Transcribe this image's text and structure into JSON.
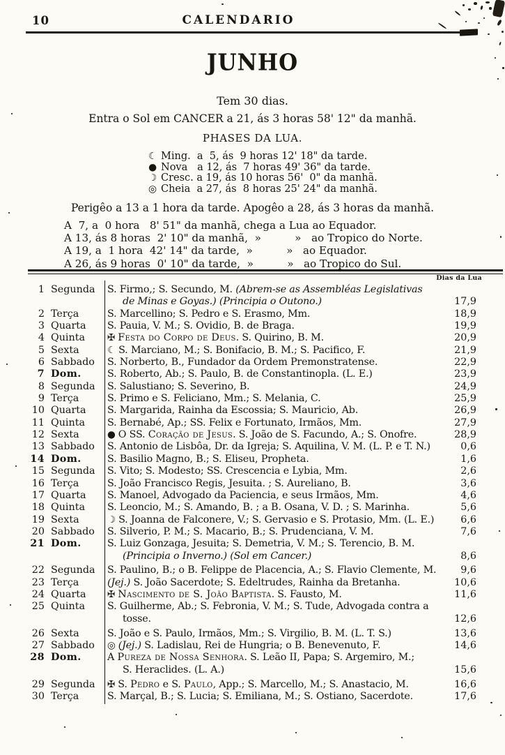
{
  "colors": {
    "ink": "#19150f",
    "paper": "#fcfbf6"
  },
  "header": {
    "page_number": "10",
    "title": "CALENDARIO"
  },
  "month": {
    "title": "JUNHO",
    "days": "Tem 30 dias.",
    "sun": "Entra o Sol em CANCER a 21, ás 3 horas 58' 12\" da manhã."
  },
  "phases": {
    "title": "PHASES DA LUA.",
    "items": [
      {
        "sym": "☾",
        "name": "Ming.",
        "text": "Ming.  a  5, ás  9 horas 12' 18\" da tarde."
      },
      {
        "sym": "●",
        "name": "Nova",
        "text": "Nova   a 12, ás  7 horas 49' 36\" da tarde."
      },
      {
        "sym": "☽",
        "name": "Cresc.",
        "text": "Cresc. a 19, ás 10 horas 56'  0\" da manhã."
      },
      {
        "sym": "◎",
        "name": "Cheia",
        "text": "Cheia  a 27, ás  8 horas 25' 24\" da manhã."
      }
    ]
  },
  "perigee": "Perigêo a 13 a 1 hora da tarde. Apogêo a 28, ás 3 horas da manhã.",
  "equator": [
    "A  7, a  0 hora   8' 51\" da manhã, chega a Lua ao Equador.",
    "A 13, ás 8 horas  2' 10\" da manhã,  »          »   ao Tropico do Norte.",
    "A 19, a  1 hora  42' 14\" da tarde,  »          »   ao Equador.",
    "A 26, ás 9 horas  0' 10\" da tarde,  »          »   ao Tropico do Sul."
  ],
  "table": {
    "moon_col_label": "Dias da Lua",
    "rows": [
      {
        "n": "1",
        "wd": "Segunda",
        "b": 0,
        "g": 0,
        "age": "17,9",
        "lines": [
          [
            [
              "p",
              "S. Firmo,; S. Secundo, M. "
            ],
            [
              "i",
              "(Abrem-se as Assembléas Legislativas"
            ]
          ],
          [
            [
              "i",
              "de Minas e Goyas.) (Principia o Outono.)"
            ]
          ]
        ]
      },
      {
        "n": "2",
        "wd": "Terça",
        "b": 0,
        "g": 0,
        "age": "18,9",
        "lines": [
          [
            [
              "p",
              "S. Marcellino; S. Pedro e S. Erasmo, Mm."
            ]
          ]
        ]
      },
      {
        "n": "3",
        "wd": "Quarta",
        "b": 0,
        "g": 0,
        "age": "19,9",
        "lines": [
          [
            [
              "p",
              "S. Pauia, V. M.; S. Ovidio, B. de Braga."
            ]
          ]
        ]
      },
      {
        "n": "4",
        "wd": "Quinta",
        "b": 0,
        "g": 0,
        "age": "20,9",
        "lines": [
          [
            [
              "sym",
              "✠ "
            ],
            [
              "sc",
              "Festa do Corpo de Deus"
            ],
            [
              "p",
              ". S. Quirino, B. M."
            ]
          ]
        ]
      },
      {
        "n": "5",
        "wd": "Sexta",
        "b": 0,
        "g": 0,
        "age": "21,9",
        "lines": [
          [
            [
              "sym",
              "☾ "
            ],
            [
              "p",
              "S. Marciano, M.; S. Bonifacio, B. M.; S. Pacifico, F."
            ]
          ]
        ]
      },
      {
        "n": "6",
        "wd": "Sabbado",
        "b": 0,
        "g": 0,
        "age": "22,9",
        "lines": [
          [
            [
              "p",
              "S. Norberto, B., Fundador da Ordem Premonstratense."
            ]
          ]
        ]
      },
      {
        "n": "7",
        "wd": "Dom.",
        "b": 1,
        "g": 0,
        "age": "23,9",
        "lines": [
          [
            [
              "p",
              "S. Roberto, Ab.; S. Paulo, B. de Constantinopla. (L. E.)"
            ]
          ]
        ]
      },
      {
        "n": "8",
        "wd": "Segunda",
        "b": 0,
        "g": 0,
        "age": "24,9",
        "lines": [
          [
            [
              "p",
              "S. Salustiano; S. Severino, B."
            ]
          ]
        ]
      },
      {
        "n": "9",
        "wd": "Terça",
        "b": 0,
        "g": 0,
        "age": "25,9",
        "lines": [
          [
            [
              "p",
              "S. Primo e S. Feliciano, Mm.; S. Melania, C."
            ]
          ]
        ]
      },
      {
        "n": "10",
        "wd": "Quarta",
        "b": 0,
        "g": 0,
        "age": "26,9",
        "lines": [
          [
            [
              "p",
              "S. Margarida, Rainha da Escossia; S. Mauricio, Ab."
            ]
          ]
        ]
      },
      {
        "n": "11",
        "wd": "Quinta",
        "b": 0,
        "g": 0,
        "age": "27,9",
        "lines": [
          [
            [
              "p",
              "S. Bernabé, Ap.; SS. Felix e Fortunato, Irmãos, Mm."
            ]
          ]
        ]
      },
      {
        "n": "12",
        "wd": "Sexta",
        "b": 0,
        "g": 0,
        "age": "28,9",
        "lines": [
          [
            [
              "sym",
              "● "
            ],
            [
              "p",
              "O SS. "
            ],
            [
              "sc",
              "Coração de Jesus"
            ],
            [
              "p",
              ". S. João de S. Facundo, A.; S. Onofre."
            ]
          ]
        ]
      },
      {
        "n": "13",
        "wd": "Sabbado",
        "b": 0,
        "g": 0,
        "age": "0,6",
        "lines": [
          [
            [
              "p",
              "S. Antonio de Lisbôa, Dr. da Igreja; S. Aquilina, V. M. (L. P. e T. N.)"
            ]
          ]
        ]
      },
      {
        "n": "14",
        "wd": "Dom.",
        "b": 1,
        "g": 0,
        "age": "1,6",
        "lines": [
          [
            [
              "p",
              "S. Basilio Magno, B.; S. Eliseu, Propheta."
            ]
          ]
        ]
      },
      {
        "n": "15",
        "wd": "Segunda",
        "b": 0,
        "g": 0,
        "age": "2,6",
        "lines": [
          [
            [
              "p",
              "S. Vito; S. Modesto; SS. Crescencia e Lybia, Mm."
            ]
          ]
        ]
      },
      {
        "n": "16",
        "wd": "Terça",
        "b": 0,
        "g": 0,
        "age": "3,6",
        "lines": [
          [
            [
              "p",
              "S. João Francisco Regis, Jesuita. ; S. Aureliano, B."
            ]
          ]
        ]
      },
      {
        "n": "17",
        "wd": "Quarta",
        "b": 0,
        "g": 0,
        "age": "4,6",
        "lines": [
          [
            [
              "p",
              "S. Manoel, Advogado da Paciencia, e seus Irmãos, Mm."
            ]
          ]
        ]
      },
      {
        "n": "18",
        "wd": "Quinta",
        "b": 0,
        "g": 0,
        "age": "5,6",
        "lines": [
          [
            [
              "p",
              "S. Leoncio, M.; S. Amando, B. ; a B. Osana, V. D. ; S. Marinha."
            ]
          ]
        ]
      },
      {
        "n": "19",
        "wd": "Sexta",
        "b": 0,
        "g": 0,
        "age": "6,6",
        "lines": [
          [
            [
              "sym",
              "☽ "
            ],
            [
              "p",
              "S. Joanna de Falconere, V.; S. Gervasio e S. Protasio, Mm. (L. E.)"
            ]
          ]
        ]
      },
      {
        "n": "20",
        "wd": "Sabbado",
        "b": 0,
        "g": 0,
        "age": "7,6",
        "lines": [
          [
            [
              "p",
              "S. Silverio, P. M.; S. Macario, B.; S. Prudenciana, V. M."
            ]
          ]
        ]
      },
      {
        "n": "21",
        "wd": "Dom.",
        "b": 1,
        "g": 0,
        "age": "8,6",
        "lines": [
          [
            [
              "p",
              "S. Luiz Gonzaga, Jesuita; S. Demetria, V. M.; S. Terencio, B. M."
            ]
          ],
          [
            [
              "i",
              "(Principia o Inverno.) (Sol em Cancer.)"
            ]
          ]
        ]
      },
      {
        "n": "22",
        "wd": "Segunda",
        "b": 0,
        "g": 1,
        "age": "9,6",
        "lines": [
          [
            [
              "p",
              "S. Paulino, B.; o B. Felippe de Placencia, A.; S. Flavio Clemente, M."
            ]
          ]
        ]
      },
      {
        "n": "23",
        "wd": "Terça",
        "b": 0,
        "g": 0,
        "age": "10,6",
        "lines": [
          [
            [
              "i",
              "(Jej.)"
            ],
            [
              "p",
              " S. João Sacerdote; S. Edeltrudes, Rainha da Bretanha."
            ]
          ]
        ]
      },
      {
        "n": "24",
        "wd": "Quarta",
        "b": 0,
        "g": 0,
        "age": "11,6",
        "lines": [
          [
            [
              "sym",
              "✠ "
            ],
            [
              "sc",
              "Nascimento de S. João Baptista"
            ],
            [
              "p",
              ". S. Fausto, M."
            ]
          ]
        ]
      },
      {
        "n": "25",
        "wd": "Quinta",
        "b": 0,
        "g": 0,
        "age": "12,6",
        "lines": [
          [
            [
              "p",
              "S. Guilherme, Ab.; S. Febronia, V. M.; S. Tude, Advogada contra a"
            ]
          ],
          [
            [
              "p",
              "tosse."
            ]
          ]
        ]
      },
      {
        "n": "26",
        "wd": "Sexta",
        "b": 0,
        "g": 1,
        "age": "13,6",
        "lines": [
          [
            [
              "p",
              "S. João e S. Paulo, Irmãos, Mm.; S. Virgilio, B. M. (L. T. S.)"
            ]
          ]
        ]
      },
      {
        "n": "27",
        "wd": "Sabbado",
        "b": 0,
        "g": 0,
        "age": "14,6",
        "lines": [
          [
            [
              "sym",
              "◎ "
            ],
            [
              "i",
              "(Jej.)"
            ],
            [
              "p",
              " S. Ladislau, Rei de Hungria; o B. Benevenuto, F."
            ]
          ]
        ]
      },
      {
        "n": "28",
        "wd": "Dom.",
        "b": 1,
        "g": 0,
        "age": "15,6",
        "lines": [
          [
            [
              "p",
              "A "
            ],
            [
              "sc",
              "Pureza de Nossa Senhora"
            ],
            [
              "p",
              ". S. Leão II, Papa; S. Argemiro, M.;"
            ]
          ],
          [
            [
              "p",
              "S. Heraclides. (L. A.)"
            ]
          ]
        ]
      },
      {
        "n": "29",
        "wd": "Segunda",
        "b": 0,
        "g": 1,
        "age": "16,6",
        "lines": [
          [
            [
              "sym",
              "✠ "
            ],
            [
              "p",
              "S. "
            ],
            [
              "sc",
              "Pedro"
            ],
            [
              "p",
              " e S. "
            ],
            [
              "sc",
              "Paulo"
            ],
            [
              "p",
              ", App.; S. Marcello, M.; S. Anastacio, M."
            ]
          ]
        ]
      },
      {
        "n": "30",
        "wd": "Terça",
        "b": 0,
        "g": 0,
        "age": "17,6",
        "lines": [
          [
            [
              "p",
              "S. Marçal, B.; S. Lucia; S. Emiliana, M.; S. Ostiano, Sacerdote."
            ]
          ]
        ]
      }
    ]
  }
}
